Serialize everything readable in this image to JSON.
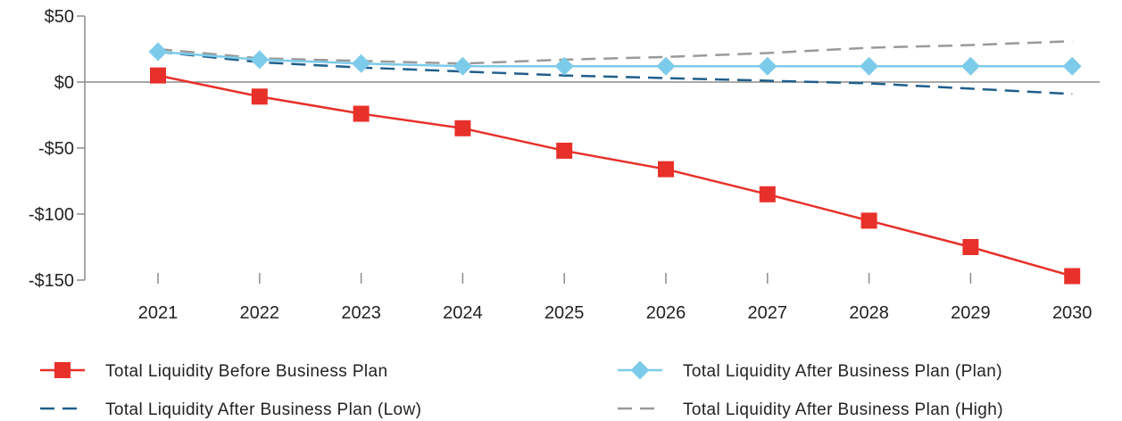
{
  "chart_data": {
    "type": "line",
    "title": "",
    "xlabel": "",
    "ylabel": "",
    "x": [
      "2021",
      "2022",
      "2023",
      "2024",
      "2025",
      "2026",
      "2027",
      "2028",
      "2029",
      "2030"
    ],
    "ylim": [
      -150,
      50
    ],
    "yticks": [
      50,
      0,
      -50,
      -100,
      -150
    ],
    "ytick_labels": [
      "$50",
      "$0",
      "-$50",
      "-$100",
      "-$150"
    ],
    "grid": false,
    "legend_position": "bottom",
    "series": [
      {
        "name": "Total Liquidity Before Business Plan",
        "values": [
          5,
          -11,
          -24,
          -35,
          -52,
          -66,
          -85,
          -105,
          -125,
          -147
        ],
        "color": "#e8302a",
        "style": "solid",
        "marker": "square"
      },
      {
        "name": "Total Liquidity After Business Plan (Plan)",
        "values": [
          23,
          17,
          14,
          12,
          12,
          12,
          12,
          12,
          12,
          12
        ],
        "color": "#7dcbea",
        "style": "solid",
        "marker": "diamond"
      },
      {
        "name": "Total Liquidity After Business Plan (Low)",
        "values": [
          23,
          15,
          11,
          8,
          5,
          3,
          1,
          -1,
          -5,
          -9
        ],
        "color": "#1f5f8b",
        "style": "dashed",
        "marker": "none"
      },
      {
        "name": "Total Liquidity After Business Plan (High)",
        "values": [
          25,
          18,
          16,
          14,
          17,
          19,
          22,
          26,
          28,
          31
        ],
        "color": "#9a9a9a",
        "style": "dashed",
        "marker": "none"
      }
    ]
  }
}
